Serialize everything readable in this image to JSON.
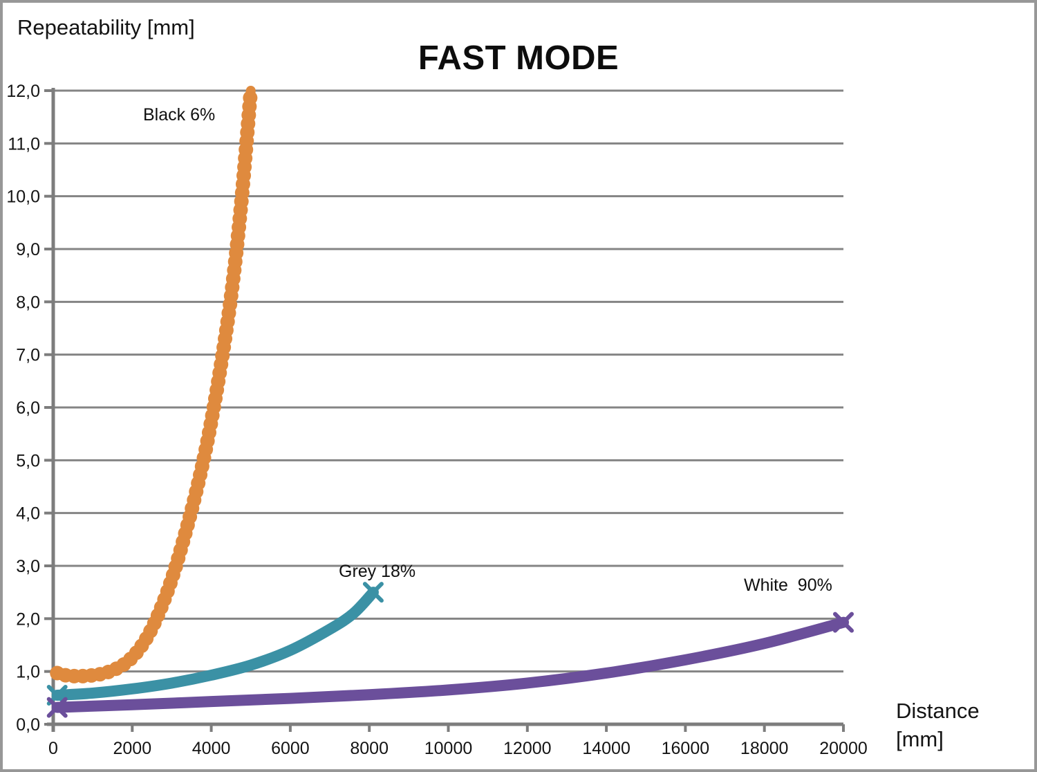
{
  "page": {
    "background": "#ffffff",
    "border_color": "#979797"
  },
  "chart_data": {
    "type": "line",
    "title": "FAST MODE",
    "ylabel": "Repeatability [mm]",
    "xlabel_line1": "Distance",
    "xlabel_line2": "[mm]",
    "xlim": [
      0,
      20000
    ],
    "ylim": [
      0,
      12
    ],
    "grid": "horizontal-only",
    "legend_position": "inline-annotations",
    "grid_color": "#848484",
    "axis_color": "#7d7d7d",
    "tick_label_color": "#141414",
    "xticks": [
      {
        "value": 0,
        "label": "0"
      },
      {
        "value": 2000,
        "label": "2000"
      },
      {
        "value": 4000,
        "label": "4000"
      },
      {
        "value": 6000,
        "label": "6000"
      },
      {
        "value": 8000,
        "label": "8000"
      },
      {
        "value": 10000,
        "label": "10000"
      },
      {
        "value": 12000,
        "label": "12000"
      },
      {
        "value": 14000,
        "label": "14000"
      },
      {
        "value": 16000,
        "label": "16000"
      },
      {
        "value": 18000,
        "label": "18000"
      },
      {
        "value": 20000,
        "label": "20000"
      }
    ],
    "yticks": [
      {
        "value": 0,
        "label": "0,0"
      },
      {
        "value": 1,
        "label": "1,0"
      },
      {
        "value": 2,
        "label": "2,0"
      },
      {
        "value": 3,
        "label": "3,0"
      },
      {
        "value": 4,
        "label": "4,0"
      },
      {
        "value": 5,
        "label": "5,0"
      },
      {
        "value": 6,
        "label": "6,0"
      },
      {
        "value": 7,
        "label": "7,0"
      },
      {
        "value": 8,
        "label": "8,0"
      },
      {
        "value": 9,
        "label": "9,0"
      },
      {
        "value": 10,
        "label": "10,0"
      },
      {
        "value": 11,
        "label": "11,0"
      },
      {
        "value": 12,
        "label": "12,0"
      }
    ],
    "series": [
      {
        "name": "Black 6%",
        "annotation": "Black 6%",
        "color": "#DF8A3E",
        "marker": "circle",
        "style": "beaded",
        "points": [
          [
            100,
            0.97
          ],
          [
            300,
            0.93
          ],
          [
            600,
            0.91
          ],
          [
            900,
            0.92
          ],
          [
            1200,
            0.95
          ],
          [
            1500,
            1.02
          ],
          [
            1800,
            1.14
          ],
          [
            2100,
            1.35
          ],
          [
            2400,
            1.68
          ],
          [
            2700,
            2.15
          ],
          [
            3000,
            2.75
          ],
          [
            3300,
            3.5
          ],
          [
            3600,
            4.35
          ],
          [
            3900,
            5.35
          ],
          [
            4200,
            6.6
          ],
          [
            4500,
            8.1
          ],
          [
            4750,
            9.8
          ],
          [
            5000,
            12.0
          ]
        ]
      },
      {
        "name": "Grey 18%",
        "annotation": "Grey 18%",
        "color": "#3B91A5",
        "marker": "x",
        "style": "solid",
        "points": [
          [
            100,
            0.55
          ],
          [
            1000,
            0.59
          ],
          [
            2000,
            0.67
          ],
          [
            3000,
            0.78
          ],
          [
            4000,
            0.93
          ],
          [
            5000,
            1.12
          ],
          [
            6000,
            1.4
          ],
          [
            7000,
            1.8
          ],
          [
            7600,
            2.1
          ],
          [
            8100,
            2.5
          ]
        ]
      },
      {
        "name": "White  90%",
        "annotation": "White  90%",
        "color": "#6B4F9B",
        "marker": "x",
        "style": "solid",
        "points": [
          [
            100,
            0.32
          ],
          [
            2000,
            0.37
          ],
          [
            4000,
            0.43
          ],
          [
            6000,
            0.49
          ],
          [
            8000,
            0.56
          ],
          [
            10000,
            0.65
          ],
          [
            12000,
            0.78
          ],
          [
            14000,
            0.97
          ],
          [
            16000,
            1.22
          ],
          [
            18000,
            1.53
          ],
          [
            20000,
            1.93
          ]
        ]
      }
    ]
  }
}
